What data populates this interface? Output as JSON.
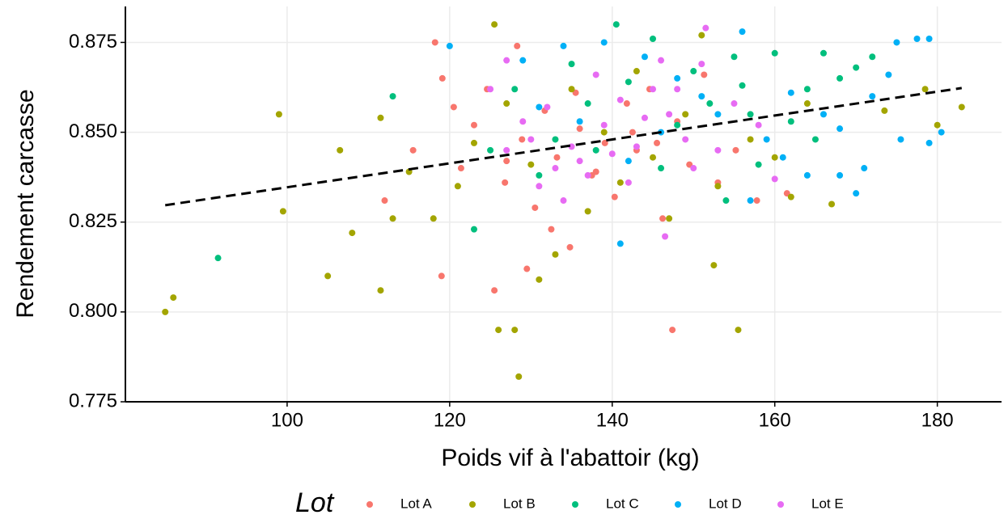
{
  "chart_data": {
    "type": "scatter",
    "x_label": "Poids vif à l'abattoir (kg)",
    "y_label": "Rendement carcasse",
    "legend_title": "Lot",
    "legend_position": "bottom",
    "grid": true,
    "xlim": [
      80.1,
      187.9
    ],
    "ylim": [
      0.775,
      0.885
    ],
    "xticks": [
      100,
      120,
      140,
      160,
      180
    ],
    "yticks": [
      0.775,
      {
        "value": 0.8,
        "label": "0.800"
      },
      0.825,
      {
        "value": 0.85,
        "label": "0.850"
      },
      0.875
    ],
    "trend_line": {
      "color": "#000000",
      "x": [
        85,
        183
      ],
      "y": [
        0.8297,
        0.8623
      ]
    },
    "series": [
      {
        "name": "Lot A",
        "color": "#F8766D",
        "x": [
          118.2,
          128.3,
          119.1,
          125.5,
          147.4,
          119.0,
          112.0,
          115.5,
          121.4,
          123.0,
          124.6,
          126.8,
          128.9,
          130.5,
          131.7,
          133.2,
          134.8,
          136.0,
          137.5,
          139.1,
          140.3,
          141.8,
          143.0,
          144.6,
          146.2,
          148.0,
          149.5,
          151.3,
          153.0,
          155.2,
          157.8,
          161.5,
          120.5,
          127.0,
          132.5,
          138.0,
          142.5,
          135.5,
          129.5,
          145.5
        ],
        "values": [
          0.875,
          0.874,
          0.865,
          0.806,
          0.795,
          0.81,
          0.831,
          0.845,
          0.84,
          0.852,
          0.862,
          0.836,
          0.848,
          0.829,
          0.856,
          0.843,
          0.818,
          0.851,
          0.838,
          0.847,
          0.832,
          0.858,
          0.845,
          0.862,
          0.826,
          0.853,
          0.841,
          0.866,
          0.836,
          0.845,
          0.831,
          0.833,
          0.857,
          0.842,
          0.823,
          0.839,
          0.85,
          0.861,
          0.812,
          0.847
        ]
      },
      {
        "name": "Lot B",
        "color": "#A3A500",
        "x": [
          85,
          86,
          99,
          99.5,
          105,
          108,
          111.5,
          125.5,
          126,
          128,
          128.5,
          155.5,
          152.5,
          178.5,
          183,
          180,
          173.5,
          167,
          162,
          106.5,
          111.5,
          115,
          118,
          121,
          123,
          127,
          130,
          133,
          135,
          137,
          139,
          141,
          143,
          145,
          147,
          149,
          151,
          153,
          157,
          160,
          164,
          131,
          113
        ],
        "values": [
          0.8,
          0.804,
          0.855,
          0.828,
          0.81,
          0.822,
          0.806,
          0.88,
          0.795,
          0.795,
          0.782,
          0.795,
          0.813,
          0.862,
          0.857,
          0.852,
          0.856,
          0.83,
          0.832,
          0.845,
          0.854,
          0.839,
          0.826,
          0.835,
          0.847,
          0.858,
          0.841,
          0.816,
          0.862,
          0.828,
          0.85,
          0.836,
          0.867,
          0.843,
          0.826,
          0.855,
          0.877,
          0.835,
          0.848,
          0.843,
          0.858,
          0.809,
          0.826
        ]
      },
      {
        "name": "Lot C",
        "color": "#00BF7D",
        "x": [
          91.5,
          113,
          140.5,
          123,
          135,
          131,
          138,
          142,
          145,
          148,
          150,
          152,
          154,
          156,
          158,
          160,
          162,
          164,
          166,
          168,
          170,
          172,
          137,
          128,
          133,
          146,
          157,
          165,
          125,
          155
        ],
        "values": [
          0.815,
          0.86,
          0.88,
          0.823,
          0.869,
          0.838,
          0.845,
          0.864,
          0.876,
          0.852,
          0.867,
          0.858,
          0.831,
          0.863,
          0.841,
          0.872,
          0.853,
          0.862,
          0.872,
          0.865,
          0.868,
          0.871,
          0.858,
          0.862,
          0.848,
          0.84,
          0.855,
          0.848,
          0.845,
          0.871
        ]
      },
      {
        "name": "Lot D",
        "color": "#00B0F6",
        "x": [
          120,
          175,
          177.5,
          179,
          180.5,
          179,
          175.5,
          170,
          171,
          168,
          164,
          141,
          129,
          134,
          139,
          144,
          148,
          151,
          153,
          156,
          159,
          162,
          166,
          172,
          174,
          157,
          146,
          142,
          136,
          131,
          161,
          168
        ],
        "values": [
          0.874,
          0.875,
          0.876,
          0.876,
          0.85,
          0.847,
          0.848,
          0.833,
          0.84,
          0.838,
          0.838,
          0.819,
          0.87,
          0.874,
          0.875,
          0.871,
          0.865,
          0.86,
          0.855,
          0.878,
          0.848,
          0.861,
          0.855,
          0.86,
          0.866,
          0.831,
          0.85,
          0.842,
          0.853,
          0.857,
          0.843,
          0.851
        ]
      },
      {
        "name": "Lot E",
        "color": "#E76BF3",
        "x": [
          127,
          151.5,
          146.5,
          160,
          133,
          135,
          137,
          139,
          141,
          143,
          145,
          147,
          149,
          151,
          153,
          155,
          131,
          129,
          127,
          125,
          134,
          138,
          142,
          146,
          150,
          136,
          132,
          140,
          144,
          148,
          130,
          158
        ],
        "values": [
          0.87,
          0.879,
          0.821,
          0.837,
          0.84,
          0.846,
          0.838,
          0.852,
          0.859,
          0.846,
          0.862,
          0.855,
          0.848,
          0.869,
          0.845,
          0.858,
          0.835,
          0.853,
          0.845,
          0.862,
          0.831,
          0.866,
          0.836,
          0.87,
          0.84,
          0.842,
          0.857,
          0.844,
          0.854,
          0.862,
          0.848,
          0.852
        ]
      }
    ]
  }
}
